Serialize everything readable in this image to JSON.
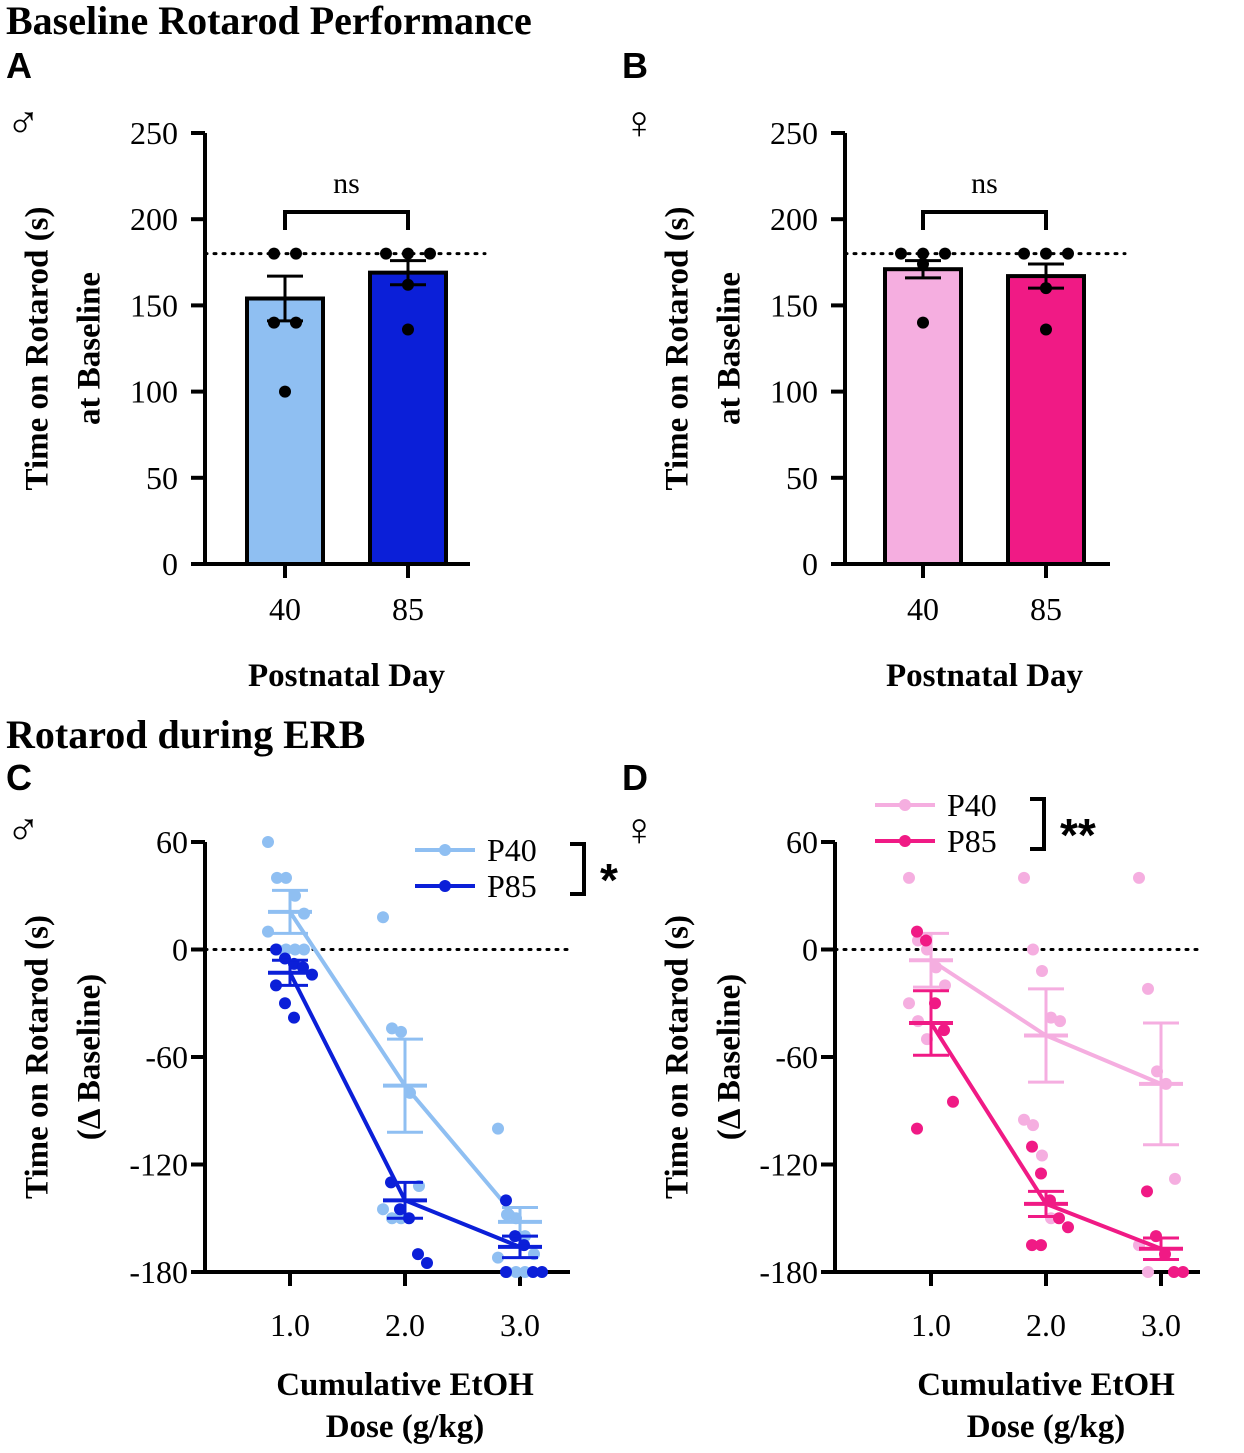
{
  "sections": {
    "baseline_title": "Baseline Rotarod Performance",
    "erb_title": "Rotarod during ERB"
  },
  "chart_data": [
    {
      "panel": "A",
      "sex_symbol": "♂",
      "type": "bar",
      "title": "",
      "categories": [
        "40",
        "85"
      ],
      "values": [
        154,
        169
      ],
      "sem": [
        13,
        7
      ],
      "colors": [
        "#8fbff2",
        "#0b1fd8"
      ],
      "points": [
        [
          180,
          180,
          140,
          140,
          100
        ],
        [
          180,
          180,
          180,
          162,
          136
        ]
      ],
      "ylabel_line1": "Time on  Rotarod (s)",
      "ylabel_line2": "at Baseline",
      "xlabel": "Postnatal Day",
      "ylim": [
        0,
        250
      ],
      "yticks": [
        "0",
        "50",
        "100",
        "150",
        "200",
        "250"
      ],
      "reference_line": 180,
      "significance": "ns"
    },
    {
      "panel": "B",
      "sex_symbol": "♀",
      "type": "bar",
      "title": "",
      "categories": [
        "40",
        "85"
      ],
      "values": [
        171,
        167
      ],
      "sem": [
        5,
        7
      ],
      "colors": [
        "#f5aee0",
        "#f01a85"
      ],
      "points": [
        [
          180,
          180,
          180,
          174,
          140
        ],
        [
          180,
          180,
          180,
          160,
          136
        ]
      ],
      "ylabel_line1": "Time on  Rotarod (s)",
      "ylabel_line2": "at Baseline",
      "xlabel": "Postnatal Day",
      "ylim": [
        0,
        250
      ],
      "yticks": [
        "0",
        "50",
        "100",
        "150",
        "200",
        "250"
      ],
      "reference_line": 180,
      "significance": "ns"
    },
    {
      "panel": "C",
      "sex_symbol": "♂",
      "type": "line",
      "x": [
        1.0,
        2.0,
        3.0
      ],
      "xticks": [
        "1.0",
        "2.0",
        "3.0"
      ],
      "series": [
        {
          "name": "P40",
          "color": "#8fbff2",
          "values": [
            21,
            -76,
            -152
          ],
          "sem": [
            12,
            26,
            8
          ],
          "points": [
            [
              60,
              40,
              40,
              30,
              20,
              10,
              0,
              0,
              0,
              0
            ],
            [
              18,
              -44,
              -46,
              -80,
              -132,
              -145,
              -150,
              -150
            ],
            [
              -100,
              -148,
              -150,
              -160,
              -170,
              -172,
              -180,
              -180,
              -180
            ]
          ]
        },
        {
          "name": "P85",
          "color": "#0b1fd8",
          "values": [
            -13,
            -140,
            -166
          ],
          "sem": [
            7,
            10,
            6
          ],
          "points": [
            [
              0,
              -5,
              -8,
              -10,
              -14,
              -20,
              -30,
              -38
            ],
            [
              -130,
              -145,
              -150,
              -170,
              -175
            ],
            [
              -140,
              -160,
              -165,
              -180,
              -180,
              -180
            ]
          ]
        }
      ],
      "ylabel_line1": "Time on Rotarod (s)",
      "ylabel_line2": "(Δ Baseline)",
      "xlabel_line1": "Cumulative EtOH",
      "xlabel_line2": "Dose (g/kg)",
      "ylim": [
        -180,
        60
      ],
      "yticks": [
        "-180",
        "-120",
        "-60",
        "0",
        "60"
      ],
      "reference_line": 0,
      "legend_position": "top-right",
      "significance": "*"
    },
    {
      "panel": "D",
      "sex_symbol": "♀",
      "type": "line",
      "x": [
        1.0,
        2.0,
        3.0
      ],
      "xticks": [
        "1.0",
        "2.0",
        "3.0"
      ],
      "series": [
        {
          "name": "P40",
          "color": "#f5aee0",
          "values": [
            -6,
            -48,
            -75
          ],
          "sem": [
            15,
            26,
            34
          ],
          "points": [
            [
              40,
              5,
              0,
              -10,
              -20,
              -30,
              -40,
              -50
            ],
            [
              40,
              0,
              -12,
              -38,
              -40,
              -95,
              -98,
              -115,
              -150
            ],
            [
              40,
              -22,
              -68,
              -75,
              -128,
              -165,
              -180
            ]
          ]
        },
        {
          "name": "P85",
          "color": "#f01a85",
          "values": [
            -41,
            -142,
            -167
          ],
          "sem": [
            18,
            7,
            6
          ],
          "points": [
            [
              10,
              5,
              -30,
              -45,
              -85,
              -100
            ],
            [
              -110,
              -125,
              -140,
              -150,
              -155,
              -165,
              -165
            ],
            [
              -135,
              -160,
              -170,
              -180,
              -180
            ]
          ]
        }
      ],
      "ylabel_line1": "Time on Rotarod (s)",
      "ylabel_line2": "(Δ Baseline)",
      "xlabel_line1": "Cumulative EtOH",
      "xlabel_line2": "Dose (g/kg)",
      "ylim": [
        -180,
        60
      ],
      "yticks": [
        "-180",
        "-120",
        "-60",
        "0",
        "60"
      ],
      "reference_line": 0,
      "legend_position": "top-left",
      "significance": "**"
    }
  ]
}
